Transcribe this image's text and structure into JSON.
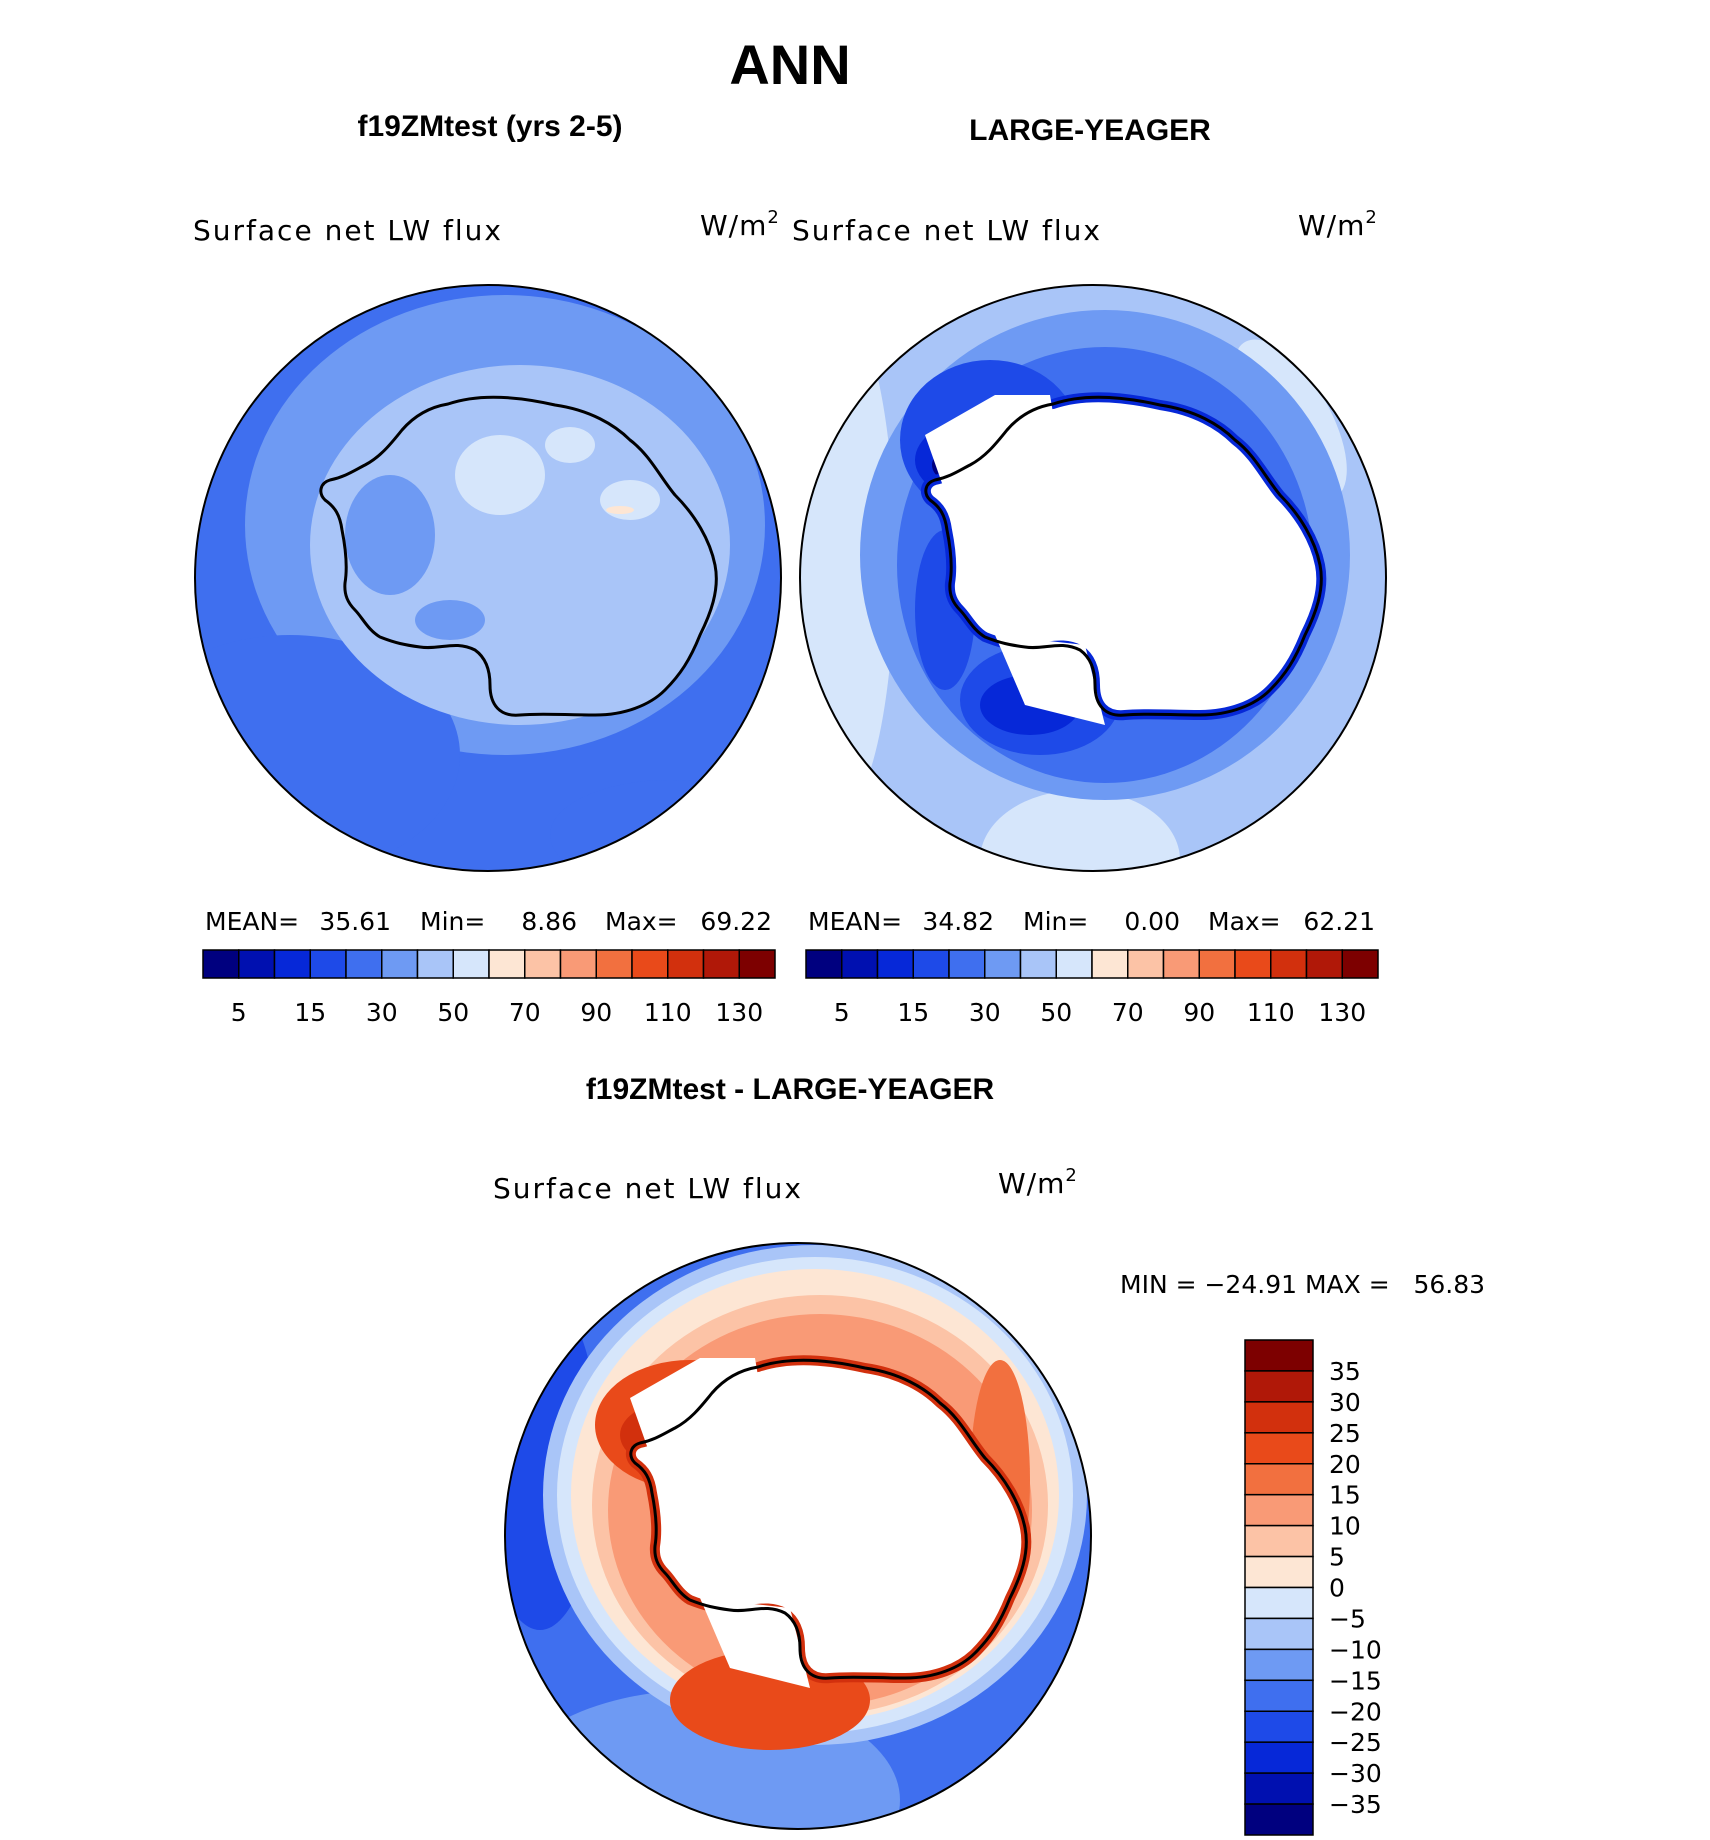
{
  "figure": {
    "title": "ANN",
    "colors": {
      "scale": [
        "#00007f",
        "#0010b0",
        "#0628d8",
        "#1e4ae8",
        "#3f6fef",
        "#6e9af3",
        "#a9c5f8",
        "#d6e6fb",
        "#fde6d4",
        "#fcc3a6",
        "#f99a76",
        "#f2703f",
        "#e94a1a",
        "#d2300d",
        "#b01808",
        "#7d0000"
      ],
      "land": "#ffffff",
      "coast": "#000000"
    },
    "panels": [
      {
        "case_title": "f19ZMtest (yrs 2-5)",
        "variable": "Surface net LW flux",
        "units_text": "W/m",
        "units_sup": "2",
        "stats": {
          "mean_label": "MEAN=",
          "mean": "35.61",
          "min_label": "Min=",
          "min": "8.86",
          "max_label": "Max=",
          "max": "69.22"
        },
        "colorbar_labels": [
          "5",
          "15",
          "30",
          "50",
          "70",
          "90",
          "110",
          "130"
        ]
      },
      {
        "case_title": "LARGE-YEAGER",
        "variable": "Surface net LW flux",
        "units_text": "W/m",
        "units_sup": "2",
        "stats": {
          "mean_label": "MEAN=",
          "mean": "34.82",
          "min_label": "Min=",
          "min": "0.00",
          "max_label": "Max=",
          "max": "62.21"
        },
        "colorbar_labels": [
          "5",
          "15",
          "30",
          "50",
          "70",
          "90",
          "110",
          "130"
        ]
      }
    ],
    "difference": {
      "case_title": "f19ZMtest - LARGE-YEAGER",
      "variable": "Surface net LW flux",
      "units_text": "W/m",
      "units_sup": "2",
      "minmax_text": "MIN = −24.91 MAX =   56.83",
      "colorbar_labels": [
        "35",
        "30",
        "25",
        "20",
        "15",
        "10",
        "5",
        "0",
        "−5",
        "−10",
        "−15",
        "−20",
        "−25",
        "−30",
        "−35"
      ]
    }
  }
}
